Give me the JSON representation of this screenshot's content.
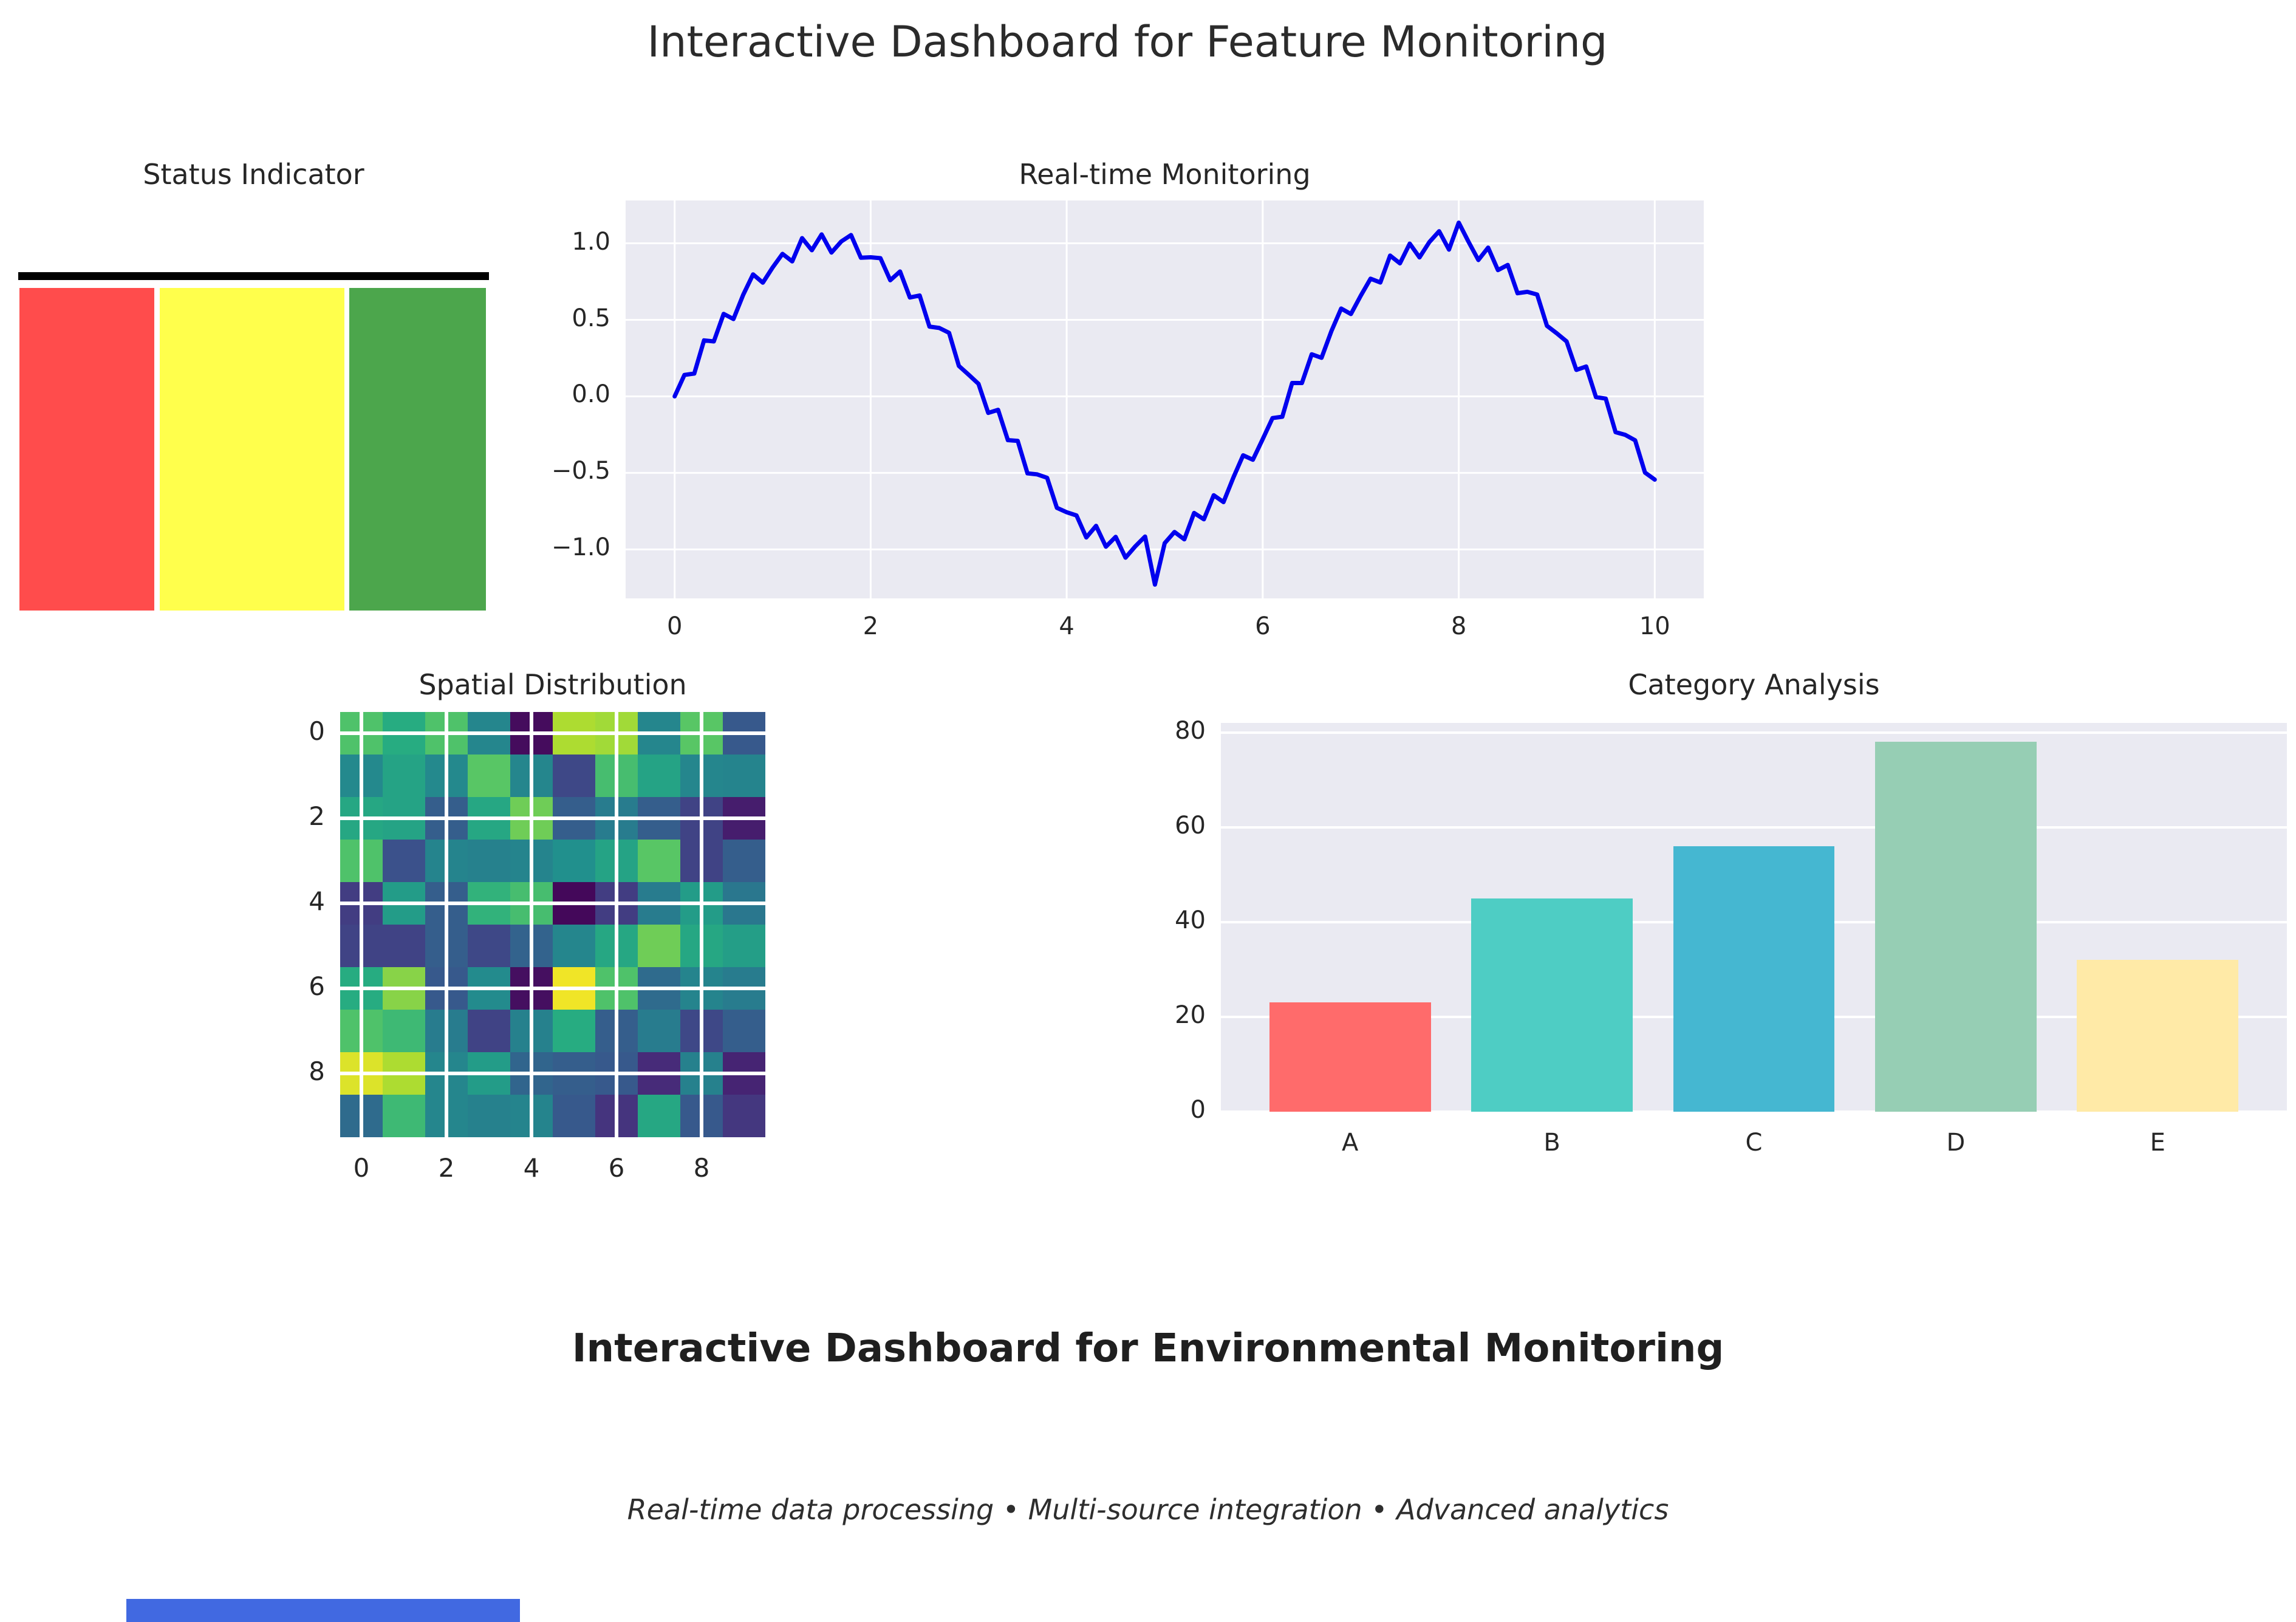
{
  "page": {
    "title": "Interactive Dashboard for Feature Monitoring"
  },
  "footer": {
    "title": "Interactive Dashboard for Environmental Monitoring",
    "subtitle": "Real-time data processing • Multi-source integration • Advanced analytics"
  },
  "colors": {
    "plot_background": "#EAEAF2",
    "grid": "#FFFFFF",
    "text": "#262626",
    "bottom_left_bar": "#4169E1"
  },
  "chart_data": [
    {
      "id": "status",
      "type": "bar",
      "title": "Status Indicator",
      "categories": [
        "red",
        "yellow",
        "green"
      ],
      "values": [
        1,
        1,
        1
      ],
      "colors": [
        "#FF4C4C",
        "#FFFF4C",
        "#4CA64C"
      ],
      "top_line_color": "#000000"
    },
    {
      "id": "realtime",
      "type": "line",
      "title": "Real-time Monitoring",
      "line_color": "#0000EE",
      "x_min": 0,
      "x_max": 10,
      "xlim": [
        -0.5,
        10.5
      ],
      "ylim": [
        -1.32,
        1.28
      ],
      "x_ticks": [
        0,
        2,
        4,
        6,
        8,
        10
      ],
      "x_tick_labels": [
        "0",
        "2",
        "4",
        "6",
        "8",
        "10"
      ],
      "y_ticks": [
        1.0,
        0.5,
        0.0,
        -0.5,
        -1.0
      ],
      "y_tick_labels": [
        "1.0",
        "0.5",
        "0.0",
        "−0.5",
        "−1.0"
      ],
      "y": [
        0.0,
        0.14,
        0.149,
        0.366,
        0.359,
        0.539,
        0.505,
        0.664,
        0.797,
        0.743,
        0.842,
        0.931,
        0.882,
        1.034,
        0.955,
        1.058,
        0.94,
        1.012,
        1.054,
        0.906,
        0.909,
        0.903,
        0.759,
        0.816,
        0.646,
        0.659,
        0.456,
        0.447,
        0.415,
        0.199,
        0.141,
        0.082,
        -0.108,
        -0.088,
        -0.286,
        -0.291,
        -0.503,
        -0.51,
        -0.532,
        -0.728,
        -0.757,
        -0.778,
        -0.922,
        -0.846,
        -0.982,
        -0.918,
        -1.054,
        -0.98,
        -0.916,
        -1.23,
        -0.959,
        -0.886,
        -0.934,
        -0.762,
        -0.803,
        -0.646,
        -0.691,
        -0.531,
        -0.385,
        -0.414,
        -0.279,
        -0.142,
        -0.133,
        0.087,
        0.087,
        0.275,
        0.252,
        0.425,
        0.574,
        0.538,
        0.657,
        0.769,
        0.744,
        0.92,
        0.869,
        0.998,
        0.908,
        1.008,
        1.079,
        0.959,
        1.135,
        1.01,
        0.891,
        0.972,
        0.825,
        0.859,
        0.674,
        0.683,
        0.665,
        0.461,
        0.412,
        0.359,
        0.173,
        0.195,
        -0.005,
        -0.015,
        -0.234,
        -0.252,
        -0.287,
        -0.498,
        -0.544
      ]
    },
    {
      "id": "spatial",
      "type": "heatmap",
      "title": "Spatial Distribution",
      "colormap": "viridis",
      "colormap_stops": [
        [
          0,
          "#440154"
        ],
        [
          0.125,
          "#472D7B"
        ],
        [
          0.25,
          "#3B518B"
        ],
        [
          0.375,
          "#2C718E"
        ],
        [
          0.5,
          "#21908D"
        ],
        [
          0.625,
          "#27AD81"
        ],
        [
          0.75,
          "#5CC863"
        ],
        [
          0.875,
          "#AADC32"
        ],
        [
          1,
          "#FDE725"
        ]
      ],
      "x_ticks": [
        0,
        2,
        4,
        6,
        8
      ],
      "x_tick_labels": [
        "0",
        "2",
        "4",
        "6",
        "8"
      ],
      "y_ticks": [
        0,
        2,
        4,
        6,
        8
      ],
      "y_tick_labels": [
        "0",
        "2",
        "4",
        "6",
        "8"
      ],
      "values": [
        [
          0.72,
          0.62,
          0.72,
          0.46,
          0.03,
          0.88,
          0.86,
          0.46,
          0.74,
          0.28
        ],
        [
          0.47,
          0.58,
          0.47,
          0.74,
          0.46,
          0.22,
          0.7,
          0.58,
          0.46,
          0.45
        ],
        [
          0.6,
          0.58,
          0.3,
          0.6,
          0.78,
          0.3,
          0.42,
          0.3,
          0.2,
          0.08
        ],
        [
          0.72,
          0.25,
          0.45,
          0.44,
          0.45,
          0.5,
          0.58,
          0.74,
          0.2,
          0.3
        ],
        [
          0.18,
          0.55,
          0.3,
          0.65,
          0.7,
          0.02,
          0.18,
          0.42,
          0.55,
          0.4
        ],
        [
          0.2,
          0.2,
          0.3,
          0.22,
          0.32,
          0.46,
          0.6,
          0.78,
          0.6,
          0.56
        ],
        [
          0.62,
          0.82,
          0.28,
          0.48,
          0.04,
          0.98,
          0.72,
          0.35,
          0.45,
          0.42
        ],
        [
          0.72,
          0.68,
          0.42,
          0.2,
          0.44,
          0.62,
          0.3,
          0.42,
          0.22,
          0.3
        ],
        [
          0.95,
          0.88,
          0.46,
          0.55,
          0.33,
          0.3,
          0.28,
          0.12,
          0.44,
          0.1
        ],
        [
          0.35,
          0.68,
          0.46,
          0.44,
          0.45,
          0.28,
          0.15,
          0.6,
          0.28,
          0.16
        ]
      ]
    },
    {
      "id": "category",
      "type": "bar",
      "title": "Category Analysis",
      "categories": [
        "A",
        "B",
        "C",
        "D",
        "E"
      ],
      "values": [
        23,
        45,
        56,
        78,
        32
      ],
      "colors": [
        "#FF6B6B",
        "#4ECDC4",
        "#45B7D1",
        "#96CEB4",
        "#FFEAA7"
      ],
      "ylim": [
        0,
        82
      ],
      "y_ticks": [
        0,
        20,
        40,
        60,
        80
      ],
      "y_tick_labels": [
        "0",
        "20",
        "40",
        "60",
        "80"
      ]
    }
  ]
}
